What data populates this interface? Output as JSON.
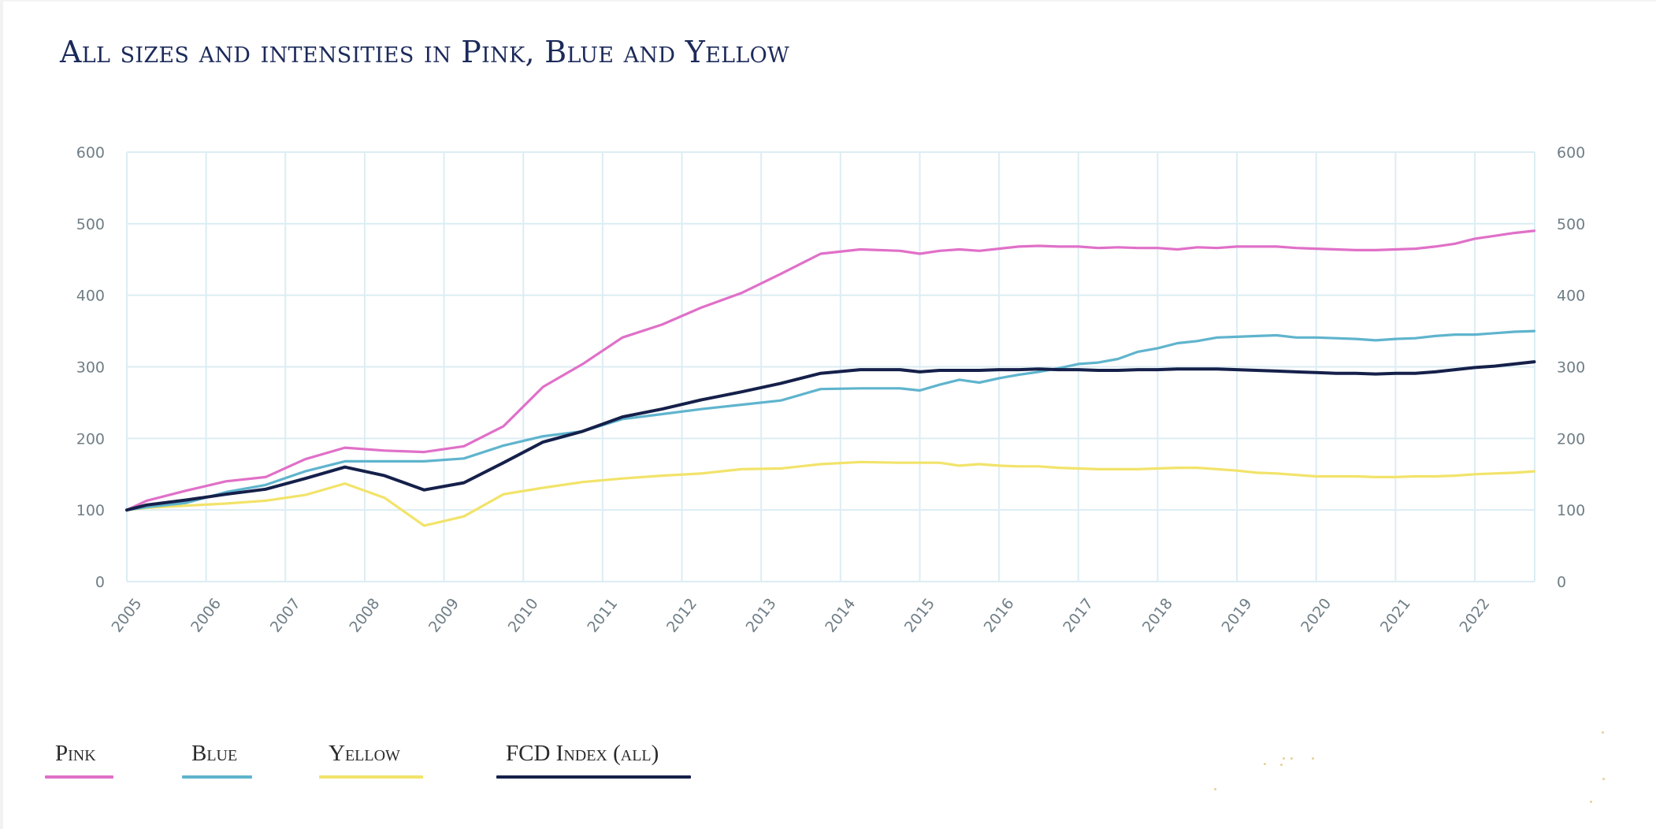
{
  "title": "All sizes and intensities in Pink, Blue and Yellow",
  "colors": {
    "pink": "#e070c8",
    "blue": "#5fb4cd",
    "yellow": "#f2e36a",
    "navy": "#15204a",
    "grid": "#dcedf3",
    "tick": "#6f7e86"
  },
  "legend": [
    {
      "label": "Pink",
      "color": "#e070c8"
    },
    {
      "label": "Blue",
      "color": "#5fb4cd"
    },
    {
      "label": "Yellow",
      "color": "#f2e36a"
    },
    {
      "label": "FCD Index (all)",
      "color": "#15204a"
    }
  ],
  "chart_data": {
    "type": "line",
    "title": "All sizes and intensities in Pink, Blue and Yellow",
    "xlabel": "",
    "ylabel": "",
    "xlim": [
      2005,
      2022.75
    ],
    "ylim": [
      0,
      600
    ],
    "grid": true,
    "legend_position": "bottom-left",
    "x_ticks": [
      "2005",
      "2006",
      "2007",
      "2008",
      "2009",
      "2010",
      "2011",
      "2012",
      "2013",
      "2014",
      "2015",
      "2016",
      "2017",
      "2018",
      "2019",
      "2020",
      "2021",
      "2022"
    ],
    "y_ticks_left": [
      "0",
      "100",
      "200",
      "300",
      "400",
      "500",
      "600"
    ],
    "y_ticks_right": [
      "0",
      "100",
      "200",
      "300",
      "400",
      "500",
      "600"
    ],
    "x": [
      2005.0,
      2005.25,
      2005.75,
      2006.25,
      2006.75,
      2007.25,
      2007.75,
      2008.25,
      2008.75,
      2009.25,
      2009.75,
      2010.25,
      2010.75,
      2011.25,
      2011.75,
      2012.25,
      2012.75,
      2013.25,
      2013.75,
      2014.25,
      2014.75,
      2015.0,
      2015.25,
      2015.5,
      2015.75,
      2016.0,
      2016.25,
      2016.5,
      2016.75,
      2017.0,
      2017.25,
      2017.5,
      2017.75,
      2018.0,
      2018.25,
      2018.5,
      2018.75,
      2019.0,
      2019.25,
      2019.5,
      2019.75,
      2020.0,
      2020.25,
      2020.5,
      2020.75,
      2021.0,
      2021.25,
      2021.5,
      2021.75,
      2022.0,
      2022.25,
      2022.5,
      2022.75
    ],
    "series": [
      {
        "name": "Pink",
        "color": "#e070c8",
        "values": [
          100,
          113,
          127,
          140,
          146,
          171,
          187,
          183,
          181,
          189,
          217,
          272,
          304,
          341,
          359,
          383,
          403,
          430,
          458,
          464,
          462,
          458,
          462,
          464,
          462,
          465,
          468,
          469,
          468,
          468,
          466,
          467,
          466,
          466,
          464,
          467,
          466,
          468,
          468,
          468,
          466,
          465,
          464,
          463,
          463,
          464,
          465,
          468,
          472,
          479,
          483,
          487,
          490
        ]
      },
      {
        "name": "Blue",
        "color": "#5fb4cd",
        "values": [
          100,
          104,
          110,
          125,
          135,
          154,
          168,
          168,
          168,
          172,
          190,
          203,
          210,
          227,
          234,
          241,
          247,
          253,
          269,
          270,
          270,
          267,
          275,
          282,
          278,
          284,
          289,
          293,
          298,
          304,
          306,
          311,
          321,
          326,
          333,
          336,
          341,
          342,
          343,
          344,
          341,
          341,
          340,
          339,
          337,
          339,
          340,
          343,
          345,
          345,
          347,
          349,
          350
        ]
      },
      {
        "name": "Yellow",
        "color": "#f2e36a",
        "values": [
          100,
          103,
          106,
          109,
          113,
          121,
          137,
          117,
          78,
          91,
          122,
          131,
          139,
          144,
          148,
          151,
          157,
          158,
          164,
          167,
          166,
          166,
          166,
          162,
          164,
          162,
          161,
          161,
          159,
          158,
          157,
          157,
          157,
          158,
          159,
          159,
          157,
          155,
          152,
          151,
          149,
          147,
          147,
          147,
          146,
          146,
          147,
          147,
          148,
          150,
          151,
          152,
          154
        ]
      },
      {
        "name": "FCD Index (all)",
        "color": "#15204a",
        "values": [
          100,
          107,
          114,
          122,
          129,
          144,
          160,
          148,
          128,
          138,
          166,
          195,
          210,
          230,
          241,
          254,
          265,
          277,
          291,
          296,
          296,
          293,
          295,
          295,
          295,
          296,
          296,
          297,
          296,
          296,
          295,
          295,
          296,
          296,
          297,
          297,
          297,
          296,
          295,
          294,
          293,
          292,
          291,
          291,
          290,
          291,
          291,
          293,
          296,
          299,
          301,
          304,
          307
        ]
      }
    ]
  }
}
